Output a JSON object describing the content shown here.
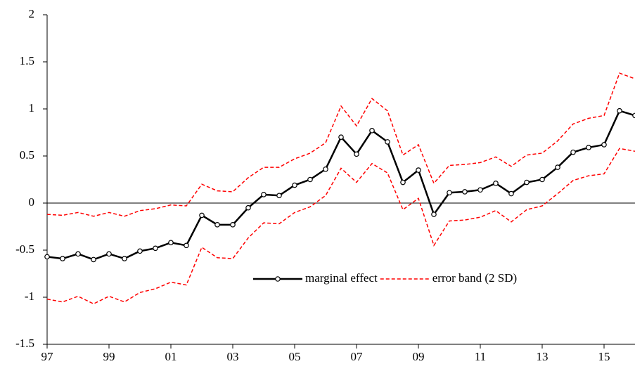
{
  "chart_data": {
    "type": "line",
    "categories": [
      "97",
      null,
      null,
      null,
      "99",
      null,
      null,
      null,
      "01",
      null,
      null,
      null,
      "03",
      null,
      null,
      null,
      "05",
      null,
      null,
      null,
      "07",
      null,
      null,
      null,
      "09",
      null,
      null,
      null,
      "11",
      null,
      null,
      null,
      "13",
      null,
      null,
      null,
      "15",
      null,
      null
    ],
    "series": [
      {
        "name": "marginal effect",
        "color": "#000000",
        "dashed": false,
        "markers": true,
        "values": [
          -0.57,
          -0.59,
          -0.54,
          -0.6,
          -0.54,
          -0.59,
          -0.51,
          -0.48,
          -0.42,
          -0.45,
          -0.13,
          -0.23,
          -0.23,
          -0.05,
          0.09,
          0.08,
          0.19,
          0.25,
          0.36,
          0.7,
          0.52,
          0.77,
          0.65,
          0.22,
          0.35,
          -0.12,
          0.11,
          0.12,
          0.14,
          0.21,
          0.1,
          0.22,
          0.25,
          0.38,
          0.54,
          0.59,
          0.62,
          0.98,
          0.93
        ]
      },
      {
        "name": "error band (2 SD)",
        "color": "#ff0000",
        "dashed": true,
        "markers": false,
        "values": [
          -0.12,
          -0.13,
          -0.1,
          -0.14,
          -0.1,
          -0.14,
          -0.08,
          -0.06,
          -0.02,
          -0.03,
          0.2,
          0.13,
          0.12,
          0.27,
          0.38,
          0.38,
          0.47,
          0.53,
          0.64,
          1.03,
          0.82,
          1.11,
          0.98,
          0.51,
          0.62,
          0.21,
          0.4,
          0.41,
          0.43,
          0.49,
          0.39,
          0.51,
          0.53,
          0.66,
          0.84,
          0.9,
          0.93,
          1.38,
          1.32
        ],
        "lower": [
          -1.02,
          -1.05,
          -0.99,
          -1.07,
          -0.99,
          -1.05,
          -0.95,
          -0.91,
          -0.84,
          -0.87,
          -0.47,
          -0.58,
          -0.59,
          -0.37,
          -0.21,
          -0.22,
          -0.1,
          -0.04,
          0.08,
          0.37,
          0.22,
          0.42,
          0.32,
          -0.07,
          0.05,
          -0.45,
          -0.19,
          -0.18,
          -0.15,
          -0.08,
          -0.2,
          -0.07,
          -0.03,
          0.1,
          0.24,
          0.29,
          0.31,
          0.58,
          0.55
        ]
      }
    ],
    "ylim": [
      -1.5,
      2
    ],
    "yticks": [
      -1.5,
      -1,
      -0.5,
      0,
      0.5,
      1,
      1.5,
      2
    ],
    "zero_line": true,
    "grid": false
  }
}
